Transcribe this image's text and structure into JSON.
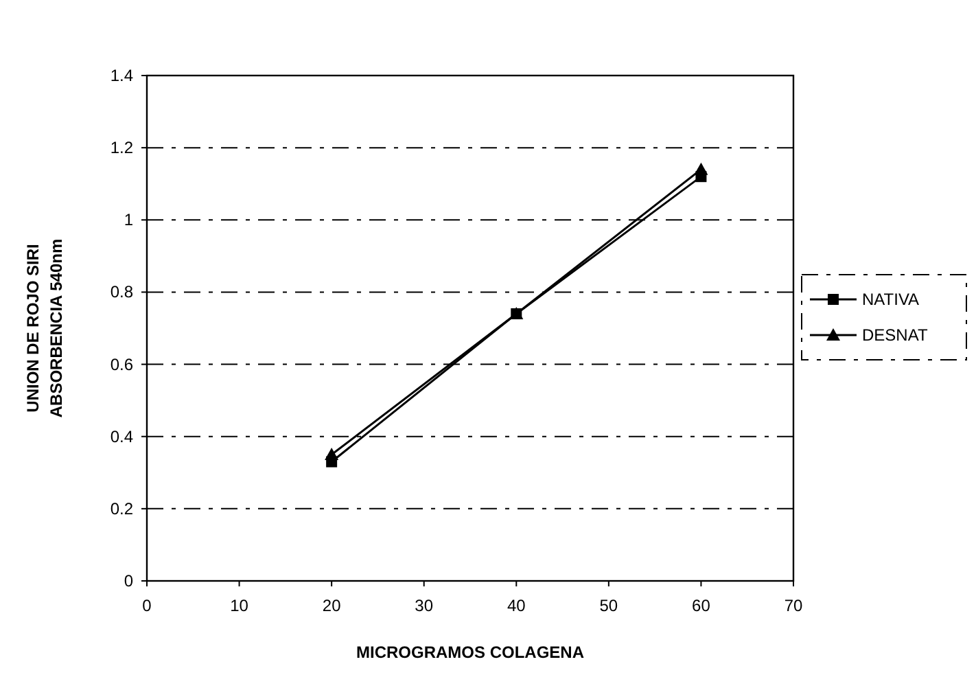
{
  "chart_data": {
    "type": "line",
    "xlabel": "MICROGRAMOS COLAGENA",
    "ylabel": "UNION DE ROJO SIRI\nABSORBENCIA 540nm",
    "x": [
      20,
      40,
      60
    ],
    "series": [
      {
        "name": "NATIVA",
        "color": "#000000",
        "values": [
          0.33,
          0.74,
          1.12
        ],
        "marker": "square"
      },
      {
        "name": "DESNAT",
        "color": "#000000",
        "values": [
          0.35,
          0.74,
          1.14
        ],
        "marker": "triangle"
      }
    ],
    "xlim": [
      0,
      70
    ],
    "xticks": [
      0,
      10,
      20,
      30,
      40,
      50,
      60,
      70
    ],
    "ylim": [
      0,
      1.4
    ],
    "yticks": [
      0,
      0.2,
      0.4,
      0.6,
      0.8,
      1,
      1.2,
      1.4
    ],
    "grid": "y",
    "legend": "right",
    "line_style": "solid"
  }
}
